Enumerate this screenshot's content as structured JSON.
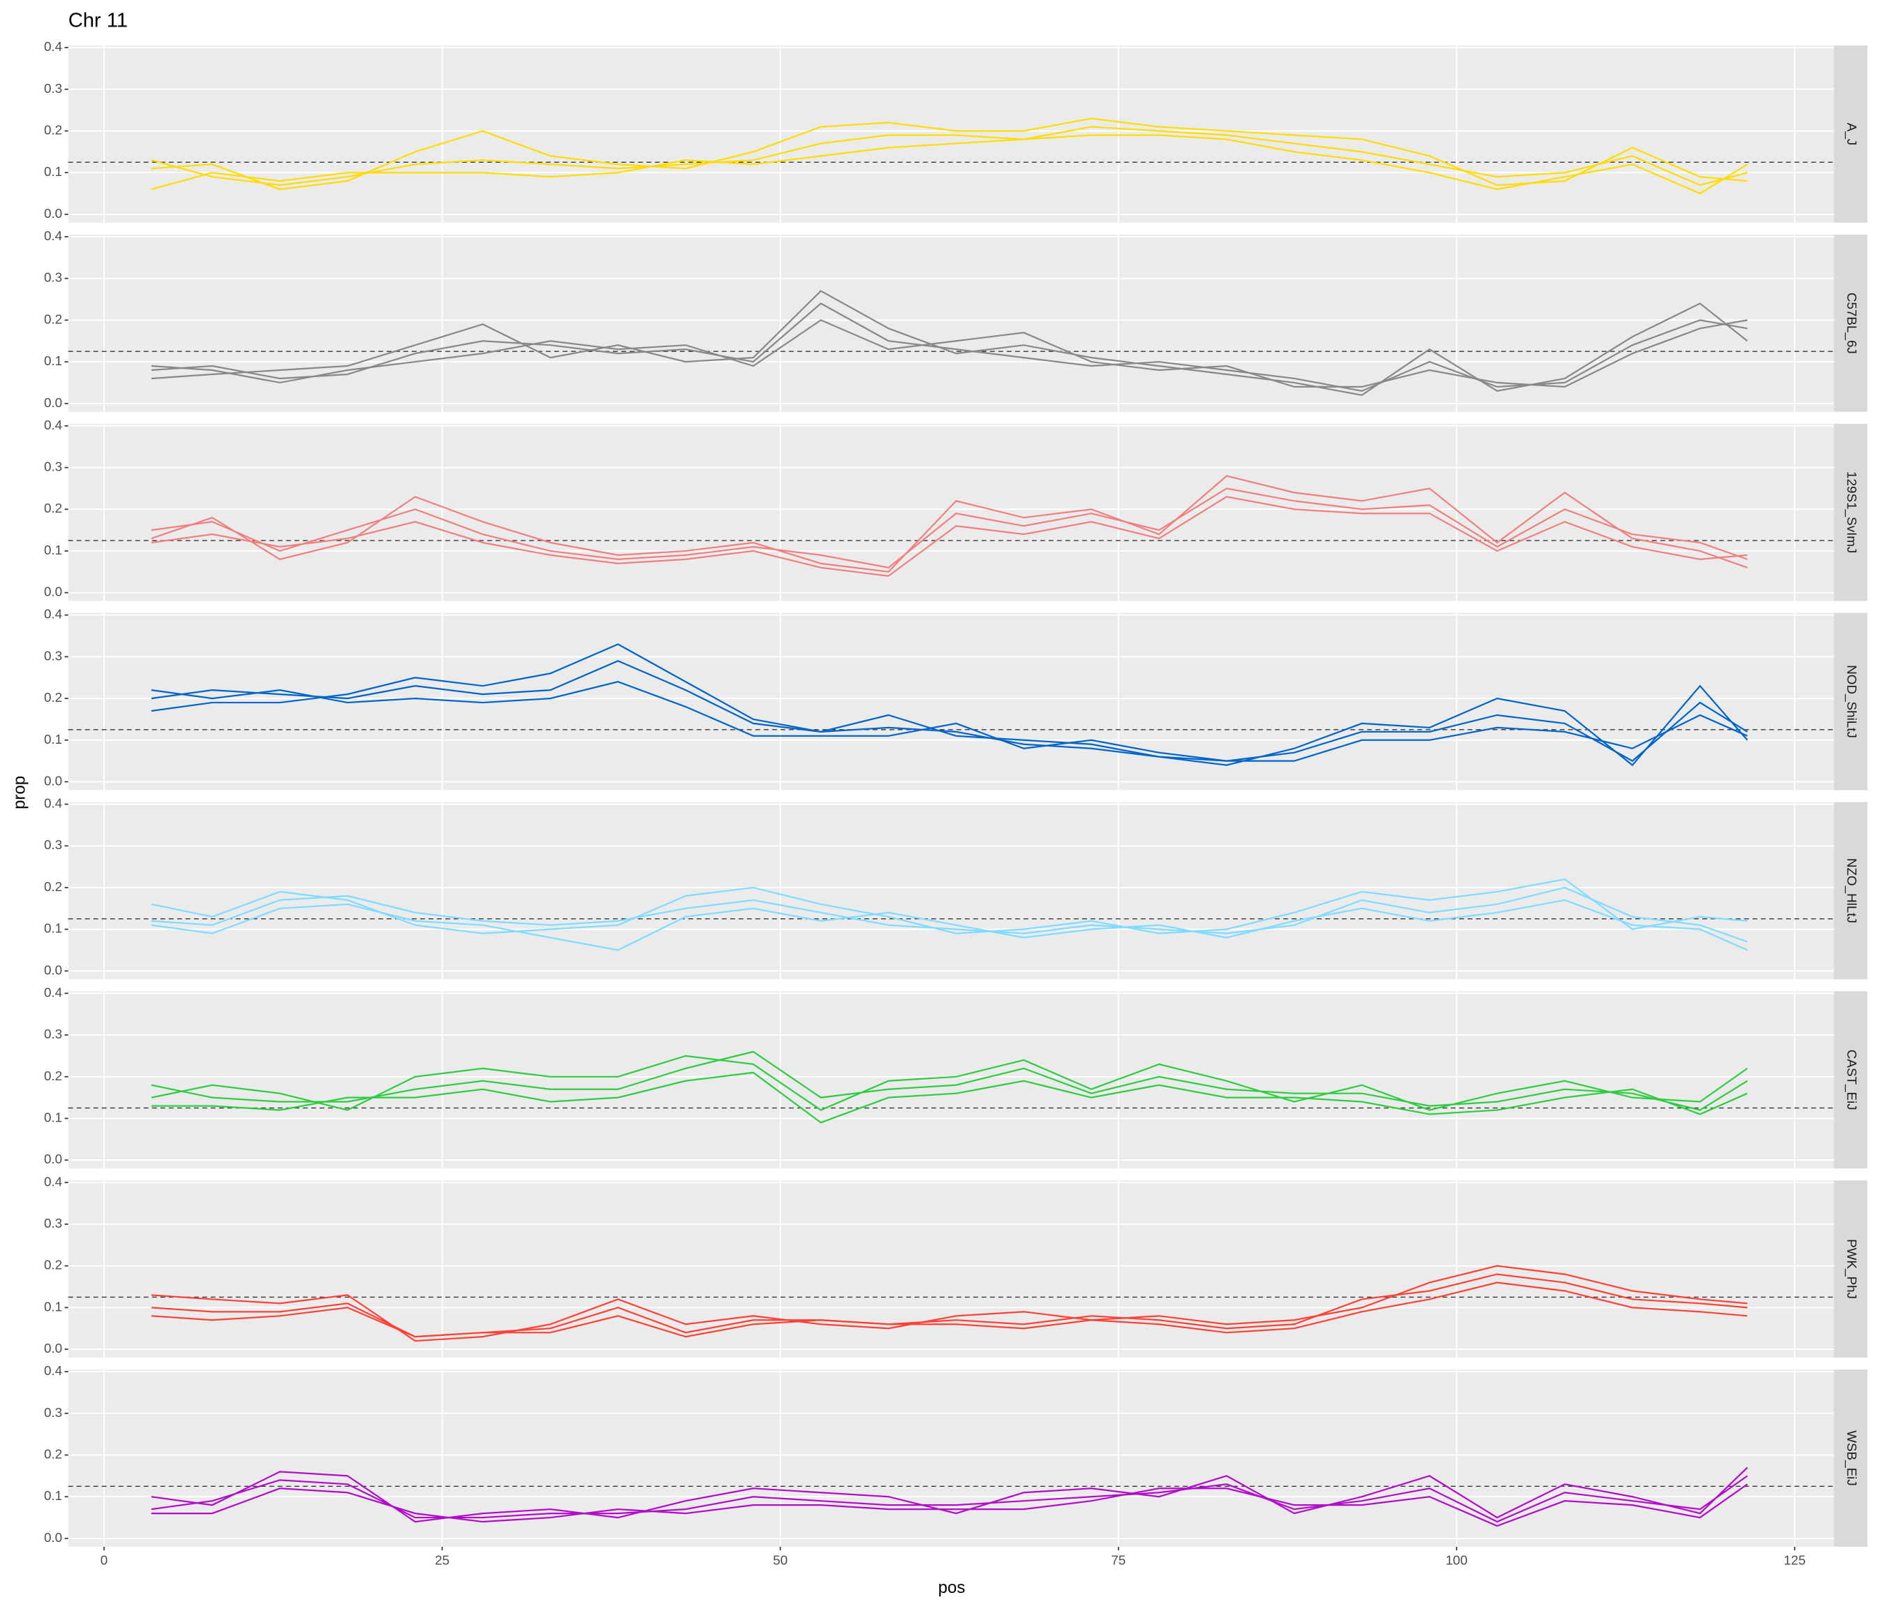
{
  "chart_data": {
    "type": "line",
    "title": "Chr 11",
    "xlabel": "pos",
    "ylabel": "prop",
    "x": [
      3.5,
      8,
      13,
      18,
      23,
      28,
      33,
      38,
      43,
      48,
      53,
      58,
      63,
      68,
      73,
      78,
      83,
      88,
      93,
      98,
      103,
      108,
      113,
      118,
      121.5
    ],
    "xlim": [
      -2.65,
      127.9
    ],
    "xticks": [
      0,
      25,
      50,
      75,
      100,
      125
    ],
    "ylim": [
      -0.02,
      0.405
    ],
    "yticks": [
      {
        "value": 0,
        "label": "0.0"
      },
      0.1,
      0.2,
      0.3,
      0.4
    ],
    "hline": 0.125,
    "grid": true,
    "facets": [
      {
        "label": "A_J",
        "color": "#FFDC00",
        "series": [
          {
            "values": [
              0.13,
              0.09,
              0.07,
              0.09,
              0.12,
              0.13,
              0.12,
              0.11,
              0.12,
              0.13,
              0.17,
              0.19,
              0.19,
              0.18,
              0.21,
              0.2,
              0.19,
              0.17,
              0.15,
              0.12,
              0.09,
              0.1,
              0.14,
              0.07,
              0.1
            ]
          },
          {
            "values": [
              0.11,
              0.12,
              0.06,
              0.08,
              0.15,
              0.2,
              0.14,
              0.12,
              0.11,
              0.15,
              0.21,
              0.22,
              0.2,
              0.2,
              0.23,
              0.21,
              0.2,
              0.19,
              0.18,
              0.14,
              0.07,
              0.08,
              0.16,
              0.09,
              0.08
            ]
          },
          {
            "values": [
              0.06,
              0.1,
              0.08,
              0.1,
              0.1,
              0.1,
              0.09,
              0.1,
              0.13,
              0.12,
              0.14,
              0.16,
              0.17,
              0.18,
              0.19,
              0.19,
              0.18,
              0.15,
              0.13,
              0.1,
              0.06,
              0.09,
              0.12,
              0.05,
              0.12
            ]
          }
        ]
      },
      {
        "label": "C57BL_6J",
        "color": "#888888",
        "series": [
          {
            "values": [
              0.08,
              0.09,
              0.06,
              0.07,
              0.12,
              0.15,
              0.14,
              0.12,
              0.13,
              0.1,
              0.24,
              0.15,
              0.13,
              0.11,
              0.09,
              0.1,
              0.08,
              0.06,
              0.03,
              0.1,
              0.04,
              0.05,
              0.14,
              0.2,
              0.18
            ]
          },
          {
            "values": [
              0.06,
              0.07,
              0.08,
              0.09,
              0.14,
              0.19,
              0.11,
              0.14,
              0.1,
              0.11,
              0.27,
              0.18,
              0.12,
              0.14,
              0.11,
              0.09,
              0.07,
              0.05,
              0.02,
              0.13,
              0.03,
              0.06,
              0.16,
              0.24,
              0.15
            ]
          },
          {
            "values": [
              0.09,
              0.08,
              0.05,
              0.08,
              0.1,
              0.12,
              0.15,
              0.13,
              0.14,
              0.09,
              0.2,
              0.13,
              0.15,
              0.17,
              0.1,
              0.08,
              0.09,
              0.04,
              0.04,
              0.08,
              0.05,
              0.04,
              0.12,
              0.18,
              0.2
            ]
          }
        ]
      },
      {
        "label": "129S1_SvImJ",
        "color": "#F08080",
        "series": [
          {
            "values": [
              0.15,
              0.17,
              0.1,
              0.15,
              0.2,
              0.14,
              0.1,
              0.08,
              0.09,
              0.11,
              0.09,
              0.06,
              0.19,
              0.16,
              0.19,
              0.15,
              0.25,
              0.22,
              0.2,
              0.21,
              0.11,
              0.2,
              0.14,
              0.12,
              0.08
            ]
          },
          {
            "values": [
              0.13,
              0.18,
              0.08,
              0.12,
              0.23,
              0.17,
              0.12,
              0.09,
              0.1,
              0.12,
              0.07,
              0.05,
              0.22,
              0.18,
              0.2,
              0.14,
              0.28,
              0.24,
              0.22,
              0.25,
              0.12,
              0.24,
              0.13,
              0.1,
              0.06
            ]
          },
          {
            "values": [
              0.12,
              0.14,
              0.11,
              0.13,
              0.17,
              0.12,
              0.09,
              0.07,
              0.08,
              0.1,
              0.06,
              0.04,
              0.16,
              0.14,
              0.17,
              0.13,
              0.23,
              0.2,
              0.19,
              0.19,
              0.1,
              0.17,
              0.11,
              0.08,
              0.09
            ]
          }
        ]
      },
      {
        "label": "NOD_ShiLtJ",
        "color": "#0064C9",
        "series": [
          {
            "values": [
              0.2,
              0.22,
              0.21,
              0.2,
              0.23,
              0.21,
              0.22,
              0.29,
              0.22,
              0.14,
              0.12,
              0.13,
              0.12,
              0.09,
              0.08,
              0.06,
              0.05,
              0.07,
              0.12,
              0.12,
              0.16,
              0.14,
              0.05,
              0.19,
              0.12
            ]
          },
          {
            "values": [
              0.17,
              0.19,
              0.19,
              0.21,
              0.25,
              0.23,
              0.26,
              0.33,
              0.24,
              0.15,
              0.12,
              0.16,
              0.11,
              0.1,
              0.09,
              0.06,
              0.04,
              0.08,
              0.14,
              0.13,
              0.2,
              0.17,
              0.04,
              0.23,
              0.1
            ]
          },
          {
            "values": [
              0.22,
              0.2,
              0.22,
              0.19,
              0.2,
              0.19,
              0.2,
              0.24,
              0.18,
              0.11,
              0.11,
              0.11,
              0.14,
              0.08,
              0.1,
              0.07,
              0.05,
              0.05,
              0.1,
              0.1,
              0.13,
              0.12,
              0.08,
              0.16,
              0.11
            ]
          }
        ]
      },
      {
        "label": "NZO_HlLtJ",
        "color": "#7FDBFF",
        "series": [
          {
            "values": [
              0.12,
              0.11,
              0.17,
              0.18,
              0.14,
              0.12,
              0.11,
              0.12,
              0.15,
              0.17,
              0.14,
              0.11,
              0.1,
              0.09,
              0.11,
              0.1,
              0.09,
              0.11,
              0.17,
              0.14,
              0.16,
              0.2,
              0.13,
              0.11,
              0.07
            ]
          },
          {
            "values": [
              0.16,
              0.13,
              0.19,
              0.17,
              0.11,
              0.09,
              0.1,
              0.11,
              0.18,
              0.2,
              0.16,
              0.13,
              0.09,
              0.1,
              0.12,
              0.09,
              0.1,
              0.14,
              0.19,
              0.17,
              0.19,
              0.22,
              0.1,
              0.13,
              0.12
            ]
          },
          {
            "values": [
              0.11,
              0.09,
              0.15,
              0.16,
              0.12,
              0.11,
              0.08,
              0.05,
              0.13,
              0.15,
              0.12,
              0.14,
              0.11,
              0.08,
              0.1,
              0.11,
              0.08,
              0.12,
              0.15,
              0.12,
              0.14,
              0.17,
              0.11,
              0.1,
              0.05
            ]
          }
        ]
      },
      {
        "label": "CAST_EiJ",
        "color": "#2ECC40",
        "series": [
          {
            "values": [
              0.18,
              0.15,
              0.14,
              0.14,
              0.17,
              0.19,
              0.17,
              0.17,
              0.22,
              0.26,
              0.15,
              0.17,
              0.18,
              0.22,
              0.16,
              0.2,
              0.17,
              0.16,
              0.16,
              0.13,
              0.14,
              0.17,
              0.16,
              0.12,
              0.19
            ]
          },
          {
            "values": [
              0.15,
              0.18,
              0.16,
              0.12,
              0.2,
              0.22,
              0.2,
              0.2,
              0.25,
              0.23,
              0.12,
              0.19,
              0.2,
              0.24,
              0.17,
              0.23,
              0.19,
              0.14,
              0.18,
              0.12,
              0.16,
              0.19,
              0.15,
              0.14,
              0.22
            ]
          },
          {
            "values": [
              0.13,
              0.13,
              0.12,
              0.15,
              0.15,
              0.17,
              0.14,
              0.15,
              0.19,
              0.21,
              0.09,
              0.15,
              0.16,
              0.19,
              0.15,
              0.18,
              0.15,
              0.15,
              0.14,
              0.11,
              0.12,
              0.15,
              0.17,
              0.11,
              0.16
            ]
          }
        ]
      },
      {
        "label": "PWK_PhJ",
        "color": "#FF4136",
        "series": [
          {
            "values": [
              0.1,
              0.09,
              0.09,
              0.11,
              0.03,
              0.04,
              0.05,
              0.1,
              0.04,
              0.07,
              0.07,
              0.06,
              0.07,
              0.06,
              0.08,
              0.07,
              0.05,
              0.06,
              0.12,
              0.14,
              0.18,
              0.16,
              0.12,
              0.11,
              0.1
            ]
          },
          {
            "values": [
              0.13,
              0.12,
              0.11,
              0.13,
              0.02,
              0.03,
              0.06,
              0.12,
              0.06,
              0.08,
              0.06,
              0.05,
              0.08,
              0.09,
              0.07,
              0.08,
              0.06,
              0.07,
              0.1,
              0.16,
              0.2,
              0.18,
              0.14,
              0.12,
              0.11
            ]
          },
          {
            "values": [
              0.08,
              0.07,
              0.08,
              0.1,
              0.03,
              0.04,
              0.04,
              0.08,
              0.03,
              0.06,
              0.07,
              0.06,
              0.06,
              0.05,
              0.07,
              0.06,
              0.04,
              0.05,
              0.09,
              0.12,
              0.16,
              0.14,
              0.1,
              0.09,
              0.08
            ]
          }
        ]
      },
      {
        "label": "WSB_EiJ",
        "color": "#B10DC9",
        "series": [
          {
            "values": [
              0.07,
              0.09,
              0.14,
              0.13,
              0.05,
              0.05,
              0.06,
              0.06,
              0.07,
              0.1,
              0.09,
              0.08,
              0.08,
              0.09,
              0.1,
              0.11,
              0.13,
              0.07,
              0.09,
              0.12,
              0.04,
              0.11,
              0.09,
              0.07,
              0.15
            ]
          },
          {
            "values": [
              0.1,
              0.08,
              0.16,
              0.15,
              0.04,
              0.06,
              0.07,
              0.05,
              0.09,
              0.12,
              0.11,
              0.1,
              0.06,
              0.11,
              0.12,
              0.1,
              0.15,
              0.06,
              0.1,
              0.15,
              0.05,
              0.13,
              0.1,
              0.06,
              0.17
            ]
          },
          {
            "values": [
              0.06,
              0.06,
              0.12,
              0.11,
              0.06,
              0.04,
              0.05,
              0.07,
              0.06,
              0.08,
              0.08,
              0.07,
              0.07,
              0.07,
              0.09,
              0.12,
              0.12,
              0.08,
              0.08,
              0.1,
              0.03,
              0.09,
              0.08,
              0.05,
              0.13
            ]
          }
        ]
      }
    ]
  }
}
